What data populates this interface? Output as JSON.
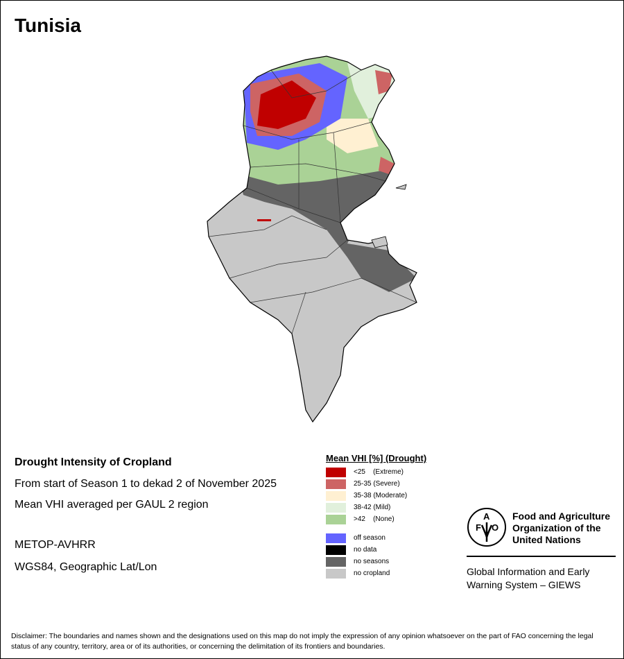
{
  "title": "Tunisia",
  "info": {
    "heading": "Drought Intensity of Cropland",
    "period": "From start of Season 1 to dekad 2 of November 2025",
    "aggregation": "Mean VHI averaged per GAUL 2 region",
    "sensor": "METOP-AVHRR",
    "projection": "WGS84, Geographic Lat/Lon"
  },
  "legend": {
    "title": "Mean VHI [%] (Drought)",
    "classes": [
      {
        "label": "<25    (Extreme)",
        "color": "#c00000"
      },
      {
        "label": "25-35 (Severe)",
        "color": "#cd6464"
      },
      {
        "label": "35-38 (Moderate)",
        "color": "#fff0d2"
      },
      {
        "label": "38-42 (Mild)",
        "color": "#e1f0dc"
      },
      {
        "label": ">42    (None)",
        "color": "#aad296"
      }
    ],
    "other": [
      {
        "label": "off season",
        "color": "#6464ff"
      },
      {
        "label": "no data",
        "color": "#000000"
      },
      {
        "label": "no seasons",
        "color": "#646464"
      },
      {
        "label": "no cropland",
        "color": "#c8c8c8"
      }
    ]
  },
  "fao": {
    "logo_text": "FAO FIAT PANIS",
    "name": "Food and Agriculture Organization of the United Nations",
    "system": "Global Information and Early Warning System – GIEWS"
  },
  "disclaimer": "Disclaimer: The boundaries and names shown and the designations used on this map do not imply the expression of any opinion whatsoever on the part of FAO concerning the legal status of any country, territory, area or of its authorities, or concerning the delimitation of its frontiers and boundaries."
}
